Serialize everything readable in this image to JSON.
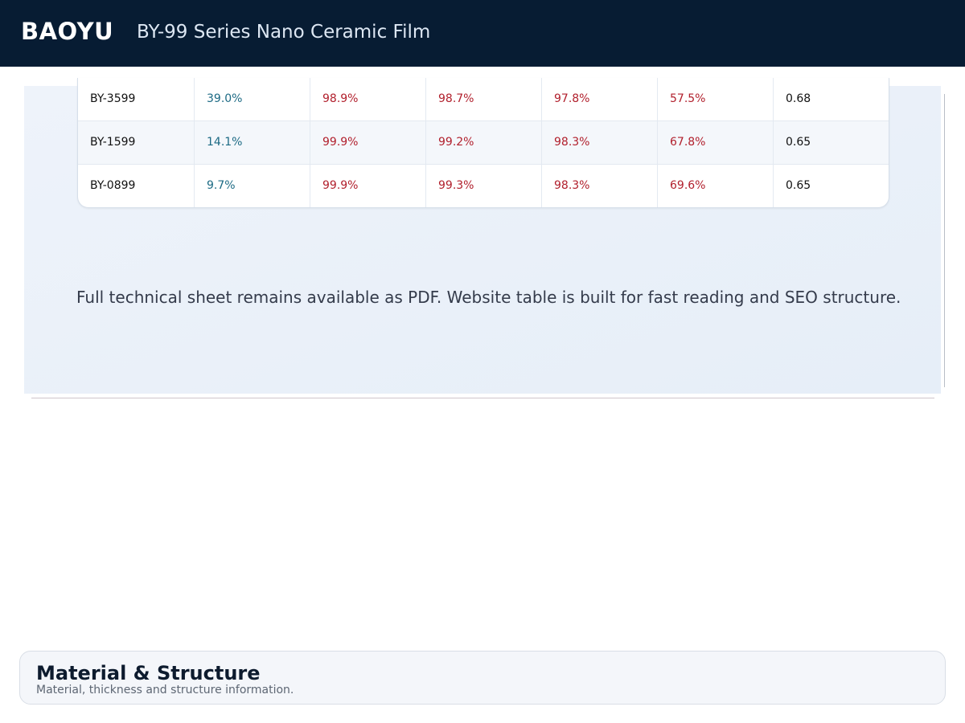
{
  "header": {
    "brand": "BAOYU",
    "title": "BY-99 Series Nano Ceramic Film"
  },
  "table": {
    "rows": [
      [
        "BY-3599",
        "39.0%",
        "98.9%",
        "98.7%",
        "97.8%",
        "57.5%",
        "0.68"
      ],
      [
        "BY-1599",
        "14.1%",
        "99.9%",
        "99.2%",
        "98.3%",
        "67.8%",
        "0.65"
      ],
      [
        "BY-0899",
        "9.7%",
        "99.9%",
        "99.3%",
        "98.3%",
        "69.6%",
        "0.65"
      ]
    ]
  },
  "note": "Full technical sheet remains available as PDF. Website table is built for fast reading and SEO structure.",
  "section": {
    "title": "Material & Structure",
    "subtitle": "Material, thickness and structure information."
  }
}
